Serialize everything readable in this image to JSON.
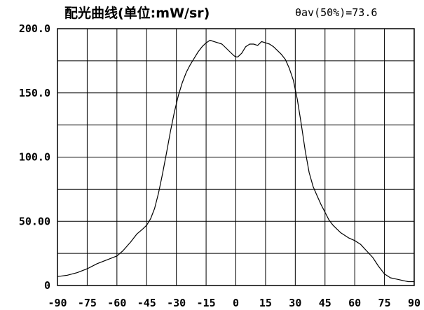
{
  "chart_data": {
    "type": "line",
    "title": "配光曲线(单位:mW/sr)",
    "stat_label": "θav(50%)=73.6",
    "xlim": [
      -90,
      90
    ],
    "ylim": [
      0,
      200
    ],
    "x_ticks": [
      "-90",
      "-75",
      "-60",
      "-45",
      "-30",
      "-15",
      "0",
      "15",
      "30",
      "45",
      "60",
      "75",
      "90"
    ],
    "y_ticks": [
      "0",
      "50.00",
      "100.0",
      "150.0",
      "200.0"
    ],
    "grid": true,
    "series": [
      {
        "x": [
          -90,
          -85,
          -80,
          -75,
          -70,
          -65,
          -60,
          -57,
          -53,
          -50,
          -47,
          -45,
          -43,
          -41,
          -39,
          -37,
          -35,
          -33,
          -31,
          -29,
          -27,
          -25,
          -23,
          -21,
          -19,
          -17,
          -15,
          -13,
          -11,
          -9,
          -7,
          -5,
          -3,
          -1,
          0,
          1,
          3,
          5,
          7,
          9,
          11,
          13,
          15,
          17,
          19,
          21,
          23,
          25,
          27,
          29,
          31,
          33,
          35,
          37,
          39,
          41,
          43,
          45,
          47,
          49,
          51,
          53,
          55,
          57,
          60,
          63,
          66,
          69,
          72,
          75,
          78,
          81,
          84,
          87,
          90
        ],
        "y": [
          7,
          8,
          10,
          13,
          17,
          20,
          23,
          27,
          34,
          40,
          44,
          47,
          52,
          60,
          72,
          87,
          103,
          120,
          135,
          148,
          158,
          166,
          172,
          177,
          182,
          186,
          189,
          191,
          190,
          189,
          188,
          185,
          182,
          179,
          178,
          178,
          181,
          186,
          188,
          188,
          187,
          190,
          189,
          188,
          186,
          183,
          180,
          176,
          169,
          160,
          145,
          126,
          105,
          88,
          77,
          70,
          63,
          57,
          51,
          47,
          44,
          41,
          39,
          37,
          35,
          32,
          27,
          22,
          15,
          9,
          6,
          5,
          4,
          3,
          3
        ],
        "color": "#000000"
      }
    ]
  }
}
